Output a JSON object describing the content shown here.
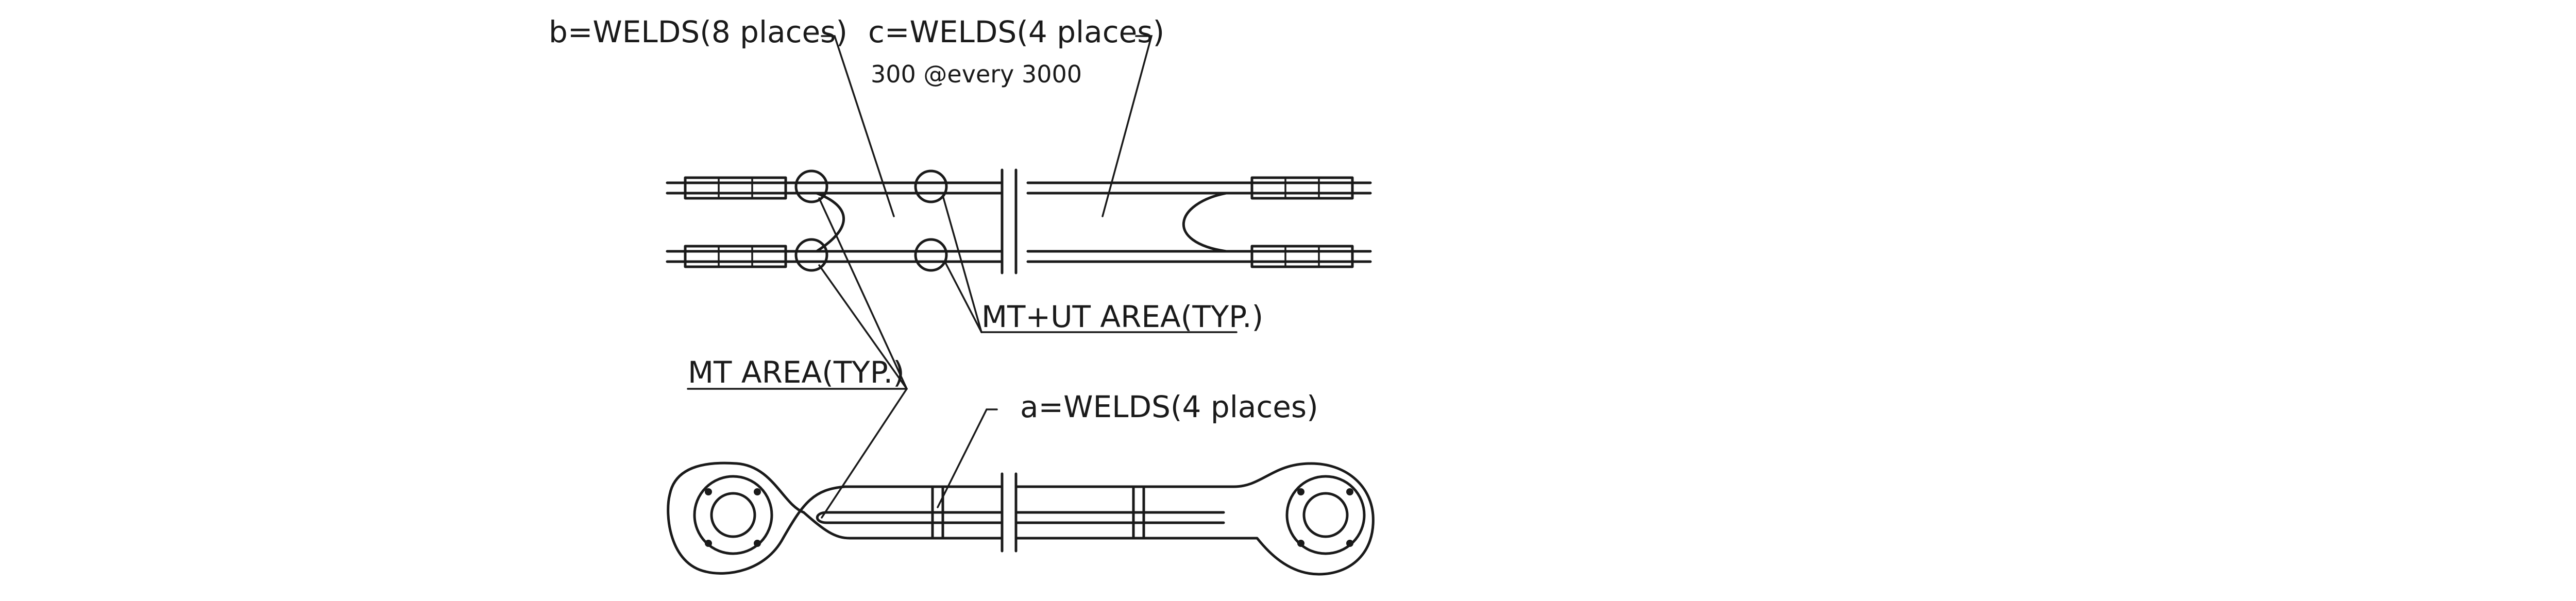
{
  "drawing": {
    "labels": {
      "welds_b": "b=WELDS(8 places)",
      "welds_c": "c=WELDS(4 places)",
      "spacing_note": "300 @every 3000",
      "mt_ut_area": "MT+UT AREA(TYP.)",
      "mt_area": "MT AREA(TYP.)",
      "welds_a": "a=WELDS(4 places)"
    }
  }
}
